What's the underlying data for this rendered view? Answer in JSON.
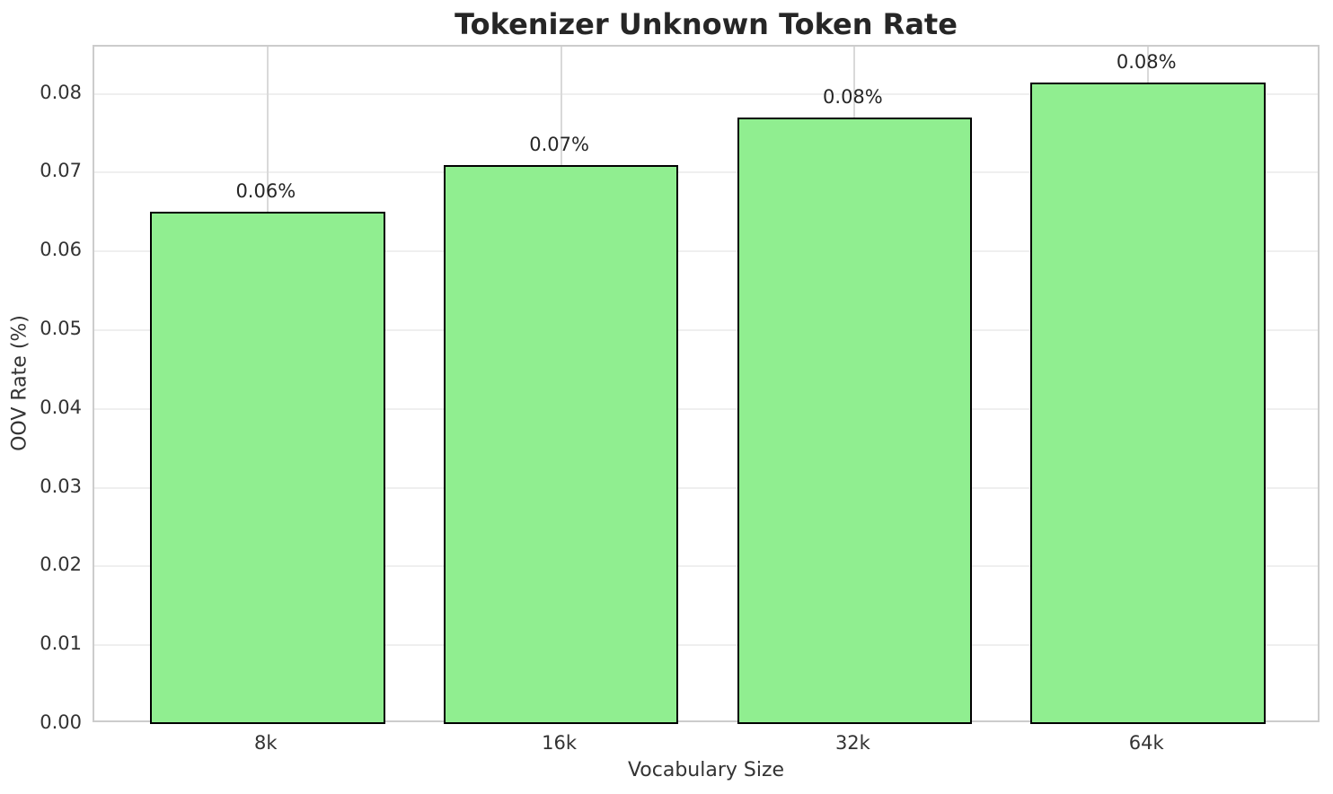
{
  "chart_data": {
    "type": "bar",
    "title": "Tokenizer Unknown Token Rate",
    "xlabel": "Vocabulary Size",
    "ylabel": "OOV Rate (%)",
    "categories": [
      "8k",
      "16k",
      "32k",
      "64k"
    ],
    "values": [
      0.065,
      0.071,
      0.077,
      0.0815
    ],
    "bar_value_labels": [
      "0.06%",
      "0.07%",
      "0.08%",
      "0.08%"
    ],
    "yticks": [
      0.0,
      0.01,
      0.02,
      0.03,
      0.04,
      0.05,
      0.06,
      0.07,
      0.08
    ],
    "ytick_labels": [
      "0.00",
      "0.01",
      "0.02",
      "0.03",
      "0.04",
      "0.05",
      "0.06",
      "0.07",
      "0.08"
    ],
    "ylim": [
      0,
      0.086
    ],
    "xlim": [
      -0.59,
      3.59
    ],
    "bar_width_units": 0.8,
    "grid": "on",
    "legend": "none",
    "bar_fill_color": "#90EE90",
    "bar_edge_color": "#000000",
    "h_gridline_color": "#efefef",
    "v_gridline_color": "#d9d9d9",
    "spine_color": "#cccccc",
    "title_color": "#262626",
    "tick_label_color": "#333333"
  }
}
